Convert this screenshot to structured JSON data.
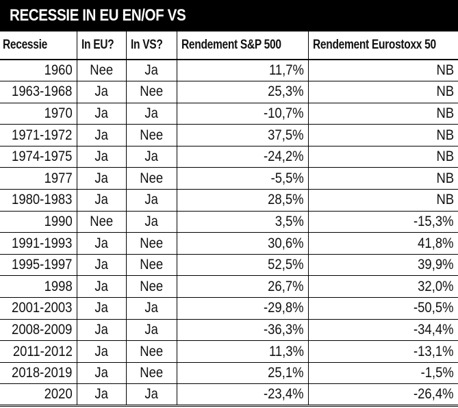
{
  "title": "RECESSIE IN EU EN/OF VS",
  "columns": [
    "Recessie",
    "In EU?",
    "In VS?",
    "Rendement S&P 500",
    "Rendement Eurostoxx 50"
  ],
  "rows": [
    [
      "1960",
      "Nee",
      "Ja",
      "11,7%",
      "NB"
    ],
    [
      "1963-1968",
      "Ja",
      "Nee",
      "25,3%",
      "NB"
    ],
    [
      "1970",
      "Ja",
      "Ja",
      "-10,7%",
      "NB"
    ],
    [
      "1971-1972",
      "Ja",
      "Nee",
      "37,5%",
      "NB"
    ],
    [
      "1974-1975",
      "Ja",
      "Ja",
      "-24,2%",
      "NB"
    ],
    [
      "1977",
      "Ja",
      "Nee",
      "-5,5%",
      "NB"
    ],
    [
      "1980-1983",
      "Ja",
      "Ja",
      "28,5%",
      "NB"
    ],
    [
      "1990",
      "Nee",
      "Ja",
      "3,5%",
      "-15,3%"
    ],
    [
      "1991-1993",
      "Ja",
      "Nee",
      "30,6%",
      "41,8%"
    ],
    [
      "1995-1997",
      "Ja",
      "Nee",
      "52,5%",
      "39,9%"
    ],
    [
      "1998",
      "Ja",
      "Nee",
      "26,7%",
      "32,0%"
    ],
    [
      "2001-2003",
      "Ja",
      "Ja",
      "-29,8%",
      "-50,5%"
    ],
    [
      "2008-2009",
      "Ja",
      "Ja",
      "-36,3%",
      "-34,4%"
    ],
    [
      "2011-2012",
      "Ja",
      "Nee",
      "11,3%",
      "-13,1%"
    ],
    [
      "2018-2019",
      "Ja",
      "Nee",
      "25,1%",
      "-1,5%"
    ],
    [
      "2020",
      "Ja",
      "Ja",
      "-23,4%",
      "-26,4%"
    ]
  ]
}
